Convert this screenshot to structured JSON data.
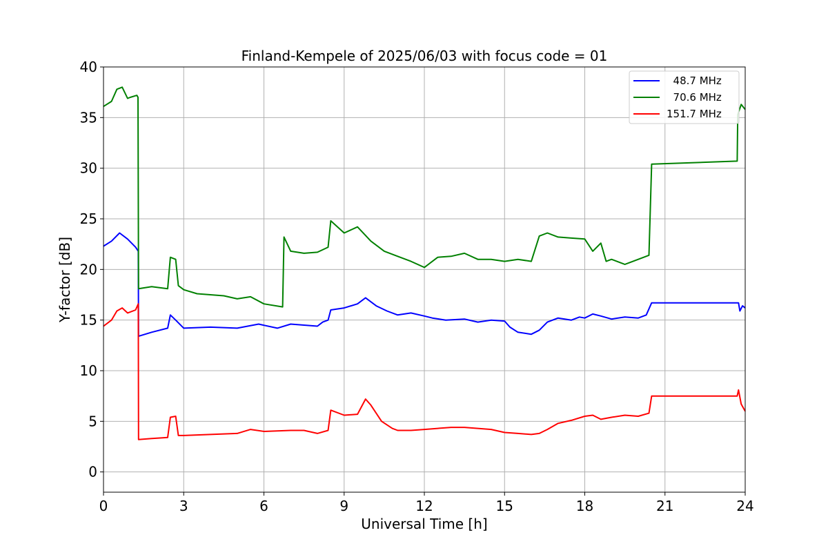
{
  "chart_data": {
    "type": "line",
    "title": "Finland-Kempele of 2025/06/03 with focus code = 01",
    "xlabel": "Universal Time [h]",
    "ylabel": "Y-factor [dB]",
    "xlim": [
      0,
      24
    ],
    "ylim": [
      -2,
      40
    ],
    "xticks": [
      0,
      3,
      6,
      9,
      12,
      15,
      18,
      21,
      24
    ],
    "yticks": [
      0,
      5,
      10,
      15,
      20,
      25,
      30,
      35,
      40
    ],
    "grid": true,
    "legend_position": "top-right",
    "series": [
      {
        "name": "  48.7 MHz",
        "color": "#0000ff",
        "x": [
          0,
          0.3,
          0.6,
          0.9,
          1.2,
          1.3,
          1.31,
          1.8,
          2.4,
          2.5,
          2.7,
          3.0,
          4.0,
          5.0,
          5.8,
          6.5,
          7.0,
          8.0,
          8.2,
          8.4,
          8.5,
          9.0,
          9.5,
          9.8,
          10.2,
          10.6,
          11.0,
          11.5,
          12.0,
          12.3,
          12.8,
          13.5,
          14.0,
          14.5,
          15.0,
          15.2,
          15.5,
          16.0,
          16.3,
          16.6,
          17.0,
          17.5,
          17.8,
          18.0,
          18.3,
          18.6,
          19.0,
          19.5,
          20.0,
          20.3,
          20.5,
          20.51,
          23.75,
          23.8,
          23.9,
          24.0
        ],
        "y": [
          22.3,
          22.8,
          23.6,
          23.0,
          22.2,
          21.8,
          13.4,
          13.8,
          14.2,
          15.5,
          15.0,
          14.2,
          14.3,
          14.2,
          14.6,
          14.2,
          14.6,
          14.4,
          14.8,
          15.0,
          16.0,
          16.2,
          16.6,
          17.2,
          16.4,
          15.9,
          15.5,
          15.7,
          15.4,
          15.2,
          15.0,
          15.1,
          14.8,
          15.0,
          14.9,
          14.3,
          13.8,
          13.6,
          14.0,
          14.8,
          15.2,
          15.0,
          15.3,
          15.2,
          15.6,
          15.4,
          15.1,
          15.3,
          15.2,
          15.5,
          16.7,
          16.7,
          16.7,
          15.9,
          16.4,
          16.2
        ]
      },
      {
        "name": "  70.6 MHz",
        "color": "#008000",
        "x": [
          0,
          0.3,
          0.5,
          0.7,
          0.9,
          1.0,
          1.25,
          1.29,
          1.31,
          1.8,
          2.4,
          2.5,
          2.7,
          2.8,
          3.0,
          3.5,
          4.5,
          5.0,
          5.5,
          6.0,
          6.7,
          6.75,
          7.0,
          7.5,
          8.0,
          8.4,
          8.5,
          9.0,
          9.5,
          10.0,
          10.5,
          11.0,
          11.5,
          12.0,
          12.5,
          13.0,
          13.5,
          14.0,
          14.5,
          15.0,
          15.5,
          16.0,
          16.3,
          16.6,
          17.0,
          17.5,
          18.0,
          18.3,
          18.6,
          18.8,
          19.0,
          19.5,
          20.0,
          20.4,
          20.5,
          20.51,
          23.7,
          23.72,
          23.85,
          24.0
        ],
        "y": [
          36.1,
          36.6,
          37.8,
          38.0,
          36.9,
          37.0,
          37.2,
          37.0,
          18.1,
          18.3,
          18.1,
          21.2,
          21.0,
          18.4,
          18.0,
          17.6,
          17.4,
          17.1,
          17.3,
          16.6,
          16.3,
          23.2,
          21.8,
          21.6,
          21.7,
          22.2,
          24.8,
          23.6,
          24.2,
          22.8,
          21.8,
          21.3,
          20.8,
          20.2,
          21.2,
          21.3,
          21.6,
          21.0,
          21.0,
          20.8,
          21.0,
          20.8,
          23.3,
          23.6,
          23.2,
          23.1,
          23.0,
          21.8,
          22.6,
          20.8,
          21.0,
          20.5,
          21.0,
          21.4,
          30.4,
          30.4,
          30.7,
          35.3,
          36.3,
          35.8
        ]
      },
      {
        "name": "151.7 MHz",
        "color": "#ff0000",
        "x": [
          0,
          0.3,
          0.5,
          0.7,
          0.9,
          1.2,
          1.3,
          1.31,
          1.8,
          2.4,
          2.5,
          2.7,
          2.8,
          3.0,
          4.0,
          5.0,
          5.5,
          6.0,
          7.0,
          7.5,
          8.0,
          8.4,
          8.5,
          9.0,
          9.5,
          9.8,
          10.0,
          10.4,
          10.8,
          11.0,
          11.5,
          12.0,
          12.5,
          13.0,
          13.5,
          14.0,
          14.5,
          15.0,
          15.5,
          16.0,
          16.3,
          16.6,
          17.0,
          17.5,
          18.0,
          18.3,
          18.6,
          19.0,
          19.5,
          20.0,
          20.4,
          20.5,
          20.51,
          23.7,
          23.75,
          23.85,
          24.0
        ],
        "y": [
          14.4,
          15.0,
          15.9,
          16.2,
          15.7,
          16.0,
          16.6,
          3.2,
          3.3,
          3.4,
          5.4,
          5.5,
          3.6,
          3.6,
          3.7,
          3.8,
          4.2,
          4.0,
          4.1,
          4.1,
          3.8,
          4.1,
          6.1,
          5.6,
          5.7,
          7.2,
          6.6,
          5.0,
          4.3,
          4.1,
          4.1,
          4.2,
          4.3,
          4.4,
          4.4,
          4.3,
          4.2,
          3.9,
          3.8,
          3.7,
          3.8,
          4.2,
          4.8,
          5.1,
          5.5,
          5.6,
          5.2,
          5.4,
          5.6,
          5.5,
          5.8,
          7.5,
          7.5,
          7.5,
          8.1,
          6.7,
          6.0
        ]
      }
    ]
  }
}
